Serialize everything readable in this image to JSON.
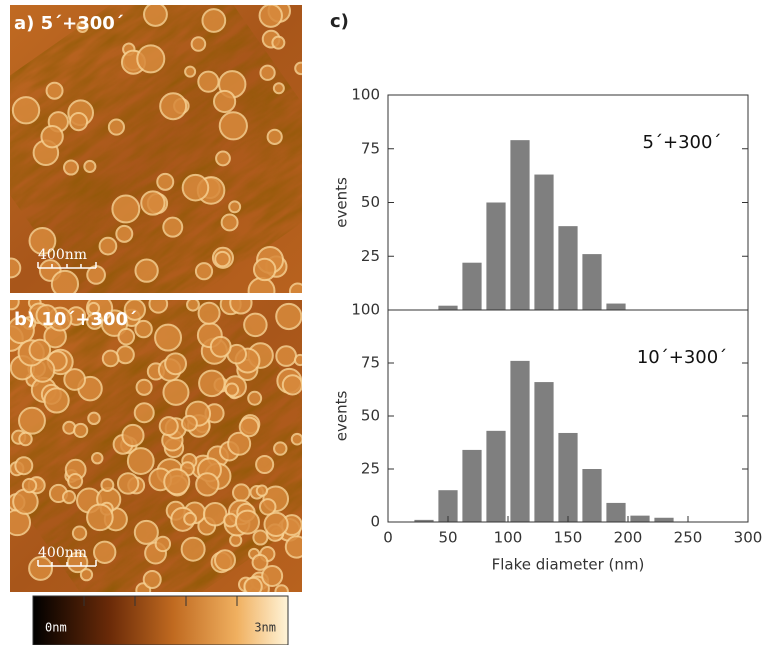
{
  "panel_label": "c)",
  "images": [
    {
      "label": "a) 5´+300´",
      "scale_bar": "400nm"
    },
    {
      "label": "b) 10´+300´",
      "scale_bar": "400nm"
    }
  ],
  "colorbar": {
    "min_label": "0nm",
    "max_label": "3nm"
  },
  "chart_data": [
    {
      "type": "histogram",
      "annotation": "5´+300´",
      "ylabel": "events",
      "bins": [
        40,
        60,
        80,
        100,
        120,
        140,
        160,
        180,
        200
      ],
      "values": [
        2,
        22,
        50,
        79,
        63,
        39,
        26,
        3
      ],
      "color": "#7f7f7f",
      "xlim": [
        0,
        300
      ],
      "ylim": [
        0,
        100
      ],
      "yticks": [
        25,
        50,
        75,
        100
      ]
    },
    {
      "type": "histogram",
      "annotation": "10´+300´",
      "ylabel": "events",
      "xlabel": "Flake diameter (nm)",
      "bins": [
        20,
        40,
        60,
        80,
        100,
        120,
        140,
        160,
        180,
        200,
        220,
        240
      ],
      "values": [
        1,
        15,
        34,
        43,
        76,
        66,
        42,
        25,
        9,
        3,
        2
      ],
      "color": "#7f7f7f",
      "xlim": [
        0,
        300
      ],
      "ylim": [
        0,
        100
      ],
      "yticks": [
        0,
        25,
        50,
        75,
        100
      ],
      "xticks": [
        0,
        50,
        100,
        150,
        200,
        250,
        300
      ]
    }
  ]
}
